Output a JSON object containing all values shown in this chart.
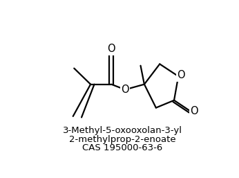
{
  "title_line1": "3-Methyl-5-oxooxolan-3-yl",
  "title_line2": "2-methylprop-2-enoate",
  "title_line3": "CAS 195000-63-6",
  "bg_color": "#ffffff",
  "bond_color": "#000000",
  "atom_color": "#000000",
  "line_width": 1.6
}
